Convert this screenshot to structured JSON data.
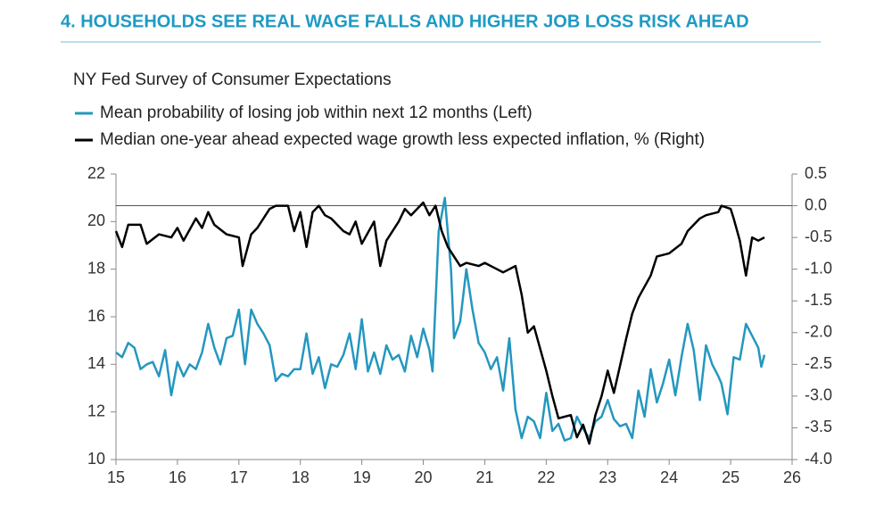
{
  "chart_data": {
    "type": "line",
    "title": "4. HOUSEHOLDS SEE REAL WAGE FALLS AND HIGHER JOB LOSS RISK AHEAD",
    "subtitle": "NY Fed Survey of Consumer Expectations",
    "xlim": [
      15,
      26
    ],
    "xticks": [
      15,
      16,
      17,
      18,
      19,
      20,
      21,
      22,
      23,
      24,
      25,
      26
    ],
    "ylim": [
      10,
      22
    ],
    "yticks": [
      10,
      12,
      14,
      16,
      18,
      20,
      22
    ],
    "y2lim": [
      -4,
      0.5
    ],
    "y2ticks": [
      {
        "value": -4,
        "label": "-4.0"
      },
      -3.5,
      {
        "value": -3,
        "label": "-3.0"
      },
      -2.5,
      {
        "value": -2,
        "label": "-2.0"
      },
      -1.5,
      {
        "value": -1,
        "label": "-1.0"
      },
      -0.5,
      {
        "value": 0,
        "label": "0.0"
      },
      0.5
    ],
    "reference_line": {
      "axis": "y2",
      "value": 0
    },
    "series": [
      {
        "name": "Mean probability of losing job within next 12 months (Left)",
        "color": "#2497bf",
        "axis": "y",
        "x": [
          15.0,
          15.1,
          15.2,
          15.3,
          15.4,
          15.5,
          15.6,
          15.7,
          15.8,
          15.9,
          16.0,
          16.1,
          16.2,
          16.3,
          16.4,
          16.5,
          16.6,
          16.7,
          16.8,
          16.9,
          17.0,
          17.1,
          17.2,
          17.3,
          17.4,
          17.5,
          17.6,
          17.7,
          17.8,
          17.9,
          18.0,
          18.1,
          18.2,
          18.3,
          18.4,
          18.5,
          18.6,
          18.7,
          18.8,
          18.9,
          19.0,
          19.1,
          19.2,
          19.3,
          19.4,
          19.5,
          19.6,
          19.7,
          19.8,
          19.9,
          20.0,
          20.1,
          20.15,
          20.25,
          20.35,
          20.45,
          20.5,
          20.6,
          20.7,
          20.8,
          20.9,
          21.0,
          21.1,
          21.2,
          21.3,
          21.4,
          21.5,
          21.6,
          21.7,
          21.8,
          21.9,
          22.0,
          22.1,
          22.2,
          22.3,
          22.4,
          22.5,
          22.6,
          22.7,
          22.8,
          22.9,
          23.0,
          23.1,
          23.2,
          23.3,
          23.4,
          23.5,
          23.6,
          23.7,
          23.8,
          23.9,
          24.0,
          24.1,
          24.2,
          24.3,
          24.4,
          24.5,
          24.6,
          24.7,
          24.8,
          24.85,
          24.95,
          25.05,
          25.15,
          25.25,
          25.35,
          25.45,
          25.5,
          25.55
        ],
        "values": [
          14.5,
          14.3,
          14.9,
          14.7,
          13.8,
          14.0,
          14.1,
          13.5,
          14.6,
          12.7,
          14.1,
          13.5,
          14.0,
          13.8,
          14.5,
          15.7,
          14.7,
          14.0,
          15.1,
          15.2,
          16.3,
          14.0,
          16.3,
          15.7,
          15.3,
          14.8,
          13.3,
          13.6,
          13.5,
          13.8,
          13.8,
          15.3,
          13.6,
          14.3,
          13.0,
          14.0,
          13.9,
          14.4,
          15.3,
          13.8,
          15.9,
          13.7,
          14.5,
          13.6,
          14.8,
          14.2,
          14.4,
          13.7,
          15.2,
          14.3,
          15.5,
          14.6,
          13.7,
          19.6,
          21.0,
          18.0,
          15.1,
          15.8,
          18.0,
          16.3,
          14.9,
          14.5,
          13.8,
          14.3,
          12.9,
          15.1,
          12.1,
          10.9,
          11.8,
          11.6,
          10.9,
          12.8,
          11.2,
          11.5,
          10.8,
          10.9,
          11.8,
          11.3,
          10.9,
          11.6,
          11.8,
          12.5,
          11.7,
          11.4,
          11.5,
          10.9,
          12.9,
          11.8,
          13.8,
          12.4,
          13.2,
          14.2,
          12.7,
          14.3,
          15.7,
          14.6,
          12.5,
          14.8,
          14.0,
          13.5,
          13.2,
          11.9,
          14.3,
          14.2,
          15.7,
          15.2,
          14.7,
          13.9,
          14.4
        ]
      },
      {
        "name": "Median one-year ahead expected wage growth less expected inflation, % (Right)",
        "color": "#000000",
        "axis": "y2",
        "x": [
          15.0,
          15.1,
          15.2,
          15.4,
          15.5,
          15.7,
          15.9,
          16.0,
          16.1,
          16.3,
          16.4,
          16.5,
          16.6,
          16.8,
          17.0,
          17.06,
          17.2,
          17.3,
          17.5,
          17.6,
          17.8,
          17.9,
          18.0,
          18.1,
          18.2,
          18.3,
          18.4,
          18.5,
          18.7,
          18.8,
          18.9,
          19.0,
          19.2,
          19.3,
          19.4,
          19.6,
          19.7,
          19.8,
          20.0,
          20.1,
          20.2,
          20.3,
          20.4,
          20.6,
          20.7,
          20.9,
          21.0,
          21.2,
          21.3,
          21.5,
          21.6,
          21.7,
          21.8,
          22.0,
          22.1,
          22.2,
          22.4,
          22.5,
          22.6,
          22.7,
          22.8,
          22.9,
          23.0,
          23.1,
          23.3,
          23.4,
          23.5,
          23.7,
          23.8,
          24.0,
          24.2,
          24.3,
          24.5,
          24.6,
          24.8,
          24.85,
          25.0,
          25.05,
          25.15,
          25.25,
          25.35,
          25.45,
          25.55
        ],
        "values": [
          -0.4,
          -0.65,
          -0.3,
          -0.3,
          -0.6,
          -0.45,
          -0.5,
          -0.35,
          -0.55,
          -0.2,
          -0.35,
          -0.1,
          -0.3,
          -0.45,
          -0.5,
          -0.95,
          -0.45,
          -0.35,
          -0.05,
          0.0,
          0.0,
          -0.4,
          -0.1,
          -0.65,
          -0.1,
          0.0,
          -0.15,
          -0.2,
          -0.4,
          -0.45,
          -0.25,
          -0.6,
          -0.25,
          -0.95,
          -0.55,
          -0.25,
          -0.05,
          -0.15,
          0.05,
          -0.15,
          0.0,
          -0.4,
          -0.65,
          -0.95,
          -0.9,
          -0.95,
          -0.9,
          -1.0,
          -1.05,
          -0.95,
          -1.4,
          -2.0,
          -1.9,
          -2.6,
          -3.0,
          -3.35,
          -3.3,
          -3.65,
          -3.45,
          -3.75,
          -3.3,
          -3.0,
          -2.6,
          -2.95,
          -2.1,
          -1.7,
          -1.45,
          -1.1,
          -0.8,
          -0.75,
          -0.6,
          -0.4,
          -0.2,
          -0.15,
          -0.1,
          0.0,
          -0.05,
          -0.2,
          -0.55,
          -1.1,
          -0.5,
          -0.55,
          -0.5
        ]
      }
    ]
  }
}
